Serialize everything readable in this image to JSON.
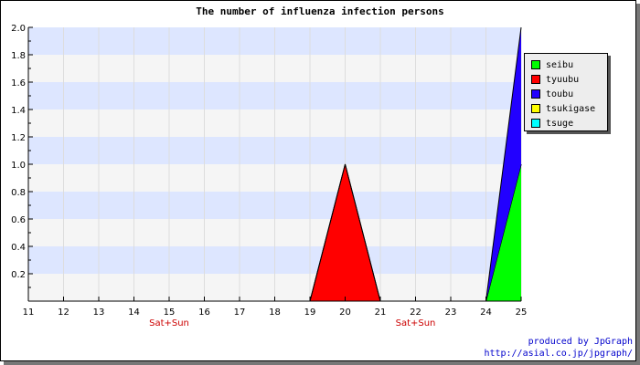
{
  "chart_data": {
    "type": "area",
    "title": "The number of influenza infection persons",
    "x": [
      11,
      12,
      13,
      14,
      15,
      16,
      17,
      18,
      19,
      20,
      21,
      22,
      23,
      24,
      25
    ],
    "xlim": [
      11,
      25
    ],
    "ylim": [
      0,
      2.0
    ],
    "y_ticks": [
      "0.2",
      "0.4",
      "0.6",
      "0.8",
      "1.0",
      "1.2",
      "1.4",
      "1.6",
      "1.8",
      "2.0"
    ],
    "weekend_label": "Sat+Sun",
    "weekend_days": [
      15,
      22
    ],
    "stacked": true,
    "series": [
      {
        "name": "seibu",
        "color": "#00ff00",
        "values": [
          0,
          0,
          0,
          0,
          0,
          0,
          0,
          0,
          0,
          0,
          0,
          0,
          0,
          0,
          1
        ]
      },
      {
        "name": "tyuubu",
        "color": "#ff0000",
        "values": [
          0,
          0,
          0,
          0,
          0,
          0,
          0,
          0,
          0,
          1,
          0,
          0,
          0,
          0,
          0
        ]
      },
      {
        "name": "toubu",
        "color": "#2200ff",
        "values": [
          0,
          0,
          0,
          0,
          0,
          0,
          0,
          0,
          0,
          0,
          0,
          0,
          0,
          0,
          1
        ]
      },
      {
        "name": "tsukigase",
        "color": "#ffff00",
        "values": [
          0,
          0,
          0,
          0,
          0,
          0,
          0,
          0,
          0,
          0,
          0,
          0,
          0,
          0,
          0
        ]
      },
      {
        "name": "tsuge",
        "color": "#00ffff",
        "values": [
          0,
          0,
          0,
          0,
          0,
          0,
          0,
          0,
          0,
          0,
          0,
          0,
          0,
          0,
          0
        ]
      }
    ],
    "band_colors": [
      "#f5f5f5",
      "#dde6ff"
    ],
    "legend_position": "right"
  },
  "credit": {
    "line1": "produced by JpGraph",
    "line2": "http://asial.co.jp/jpgraph/"
  }
}
